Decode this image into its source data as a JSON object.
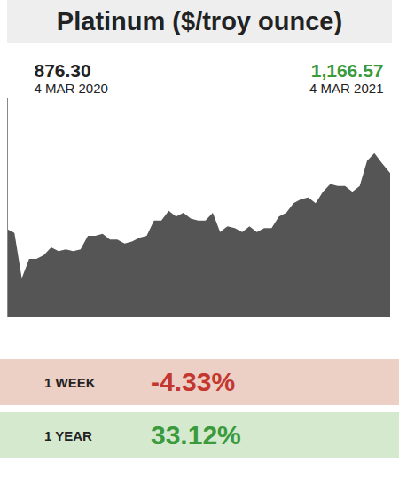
{
  "chart_data": {
    "type": "area",
    "title": "Platinum ($/troy ounce)",
    "color": "#555555",
    "tick_labels": false,
    "x": [
      "2020-03-04",
      "2020-03-11",
      "2020-03-18",
      "2020-03-25",
      "2020-04-01",
      "2020-04-08",
      "2020-04-15",
      "2020-04-22",
      "2020-04-29",
      "2020-05-06",
      "2020-05-13",
      "2020-05-20",
      "2020-05-27",
      "2020-06-03",
      "2020-06-10",
      "2020-06-17",
      "2020-06-24",
      "2020-07-01",
      "2020-07-08",
      "2020-07-15",
      "2020-07-22",
      "2020-07-29",
      "2020-08-05",
      "2020-08-12",
      "2020-08-19",
      "2020-08-26",
      "2020-09-02",
      "2020-09-09",
      "2020-09-16",
      "2020-09-23",
      "2020-09-30",
      "2020-10-07",
      "2020-10-14",
      "2020-10-21",
      "2020-10-28",
      "2020-11-04",
      "2020-11-11",
      "2020-11-18",
      "2020-11-25",
      "2020-12-02",
      "2020-12-09",
      "2020-12-16",
      "2020-12-23",
      "2020-12-30",
      "2021-01-06",
      "2021-01-13",
      "2021-01-20",
      "2021-01-27",
      "2021-02-03",
      "2021-02-10",
      "2021-02-17",
      "2021-02-24",
      "2021-03-04"
    ],
    "values": [
      876.3,
      855,
      620,
      720,
      720,
      740,
      780,
      760,
      770,
      760,
      770,
      840,
      840,
      850,
      820,
      820,
      800,
      810,
      830,
      840,
      920,
      920,
      970,
      940,
      960,
      930,
      920,
      920,
      960,
      860,
      890,
      880,
      860,
      890,
      860,
      880,
      880,
      940,
      960,
      1010,
      1030,
      1040,
      1010,
      1070,
      1110,
      1100,
      1100,
      1070,
      1100,
      1230,
      1270,
      1220,
      1166.57
    ],
    "xlim": [
      "2020-03-04",
      "2021-03-04"
    ],
    "xticks": [],
    "ylim": [
      420,
      1560
    ],
    "yticks": [],
    "annotations": [
      {
        "x": "2020-03-04",
        "label": "876.30",
        "date_label": "4 MAR 2020",
        "color": "#222222"
      },
      {
        "x": "2021-03-04",
        "label": "1,166.57",
        "date_label": "4 MAR 2021",
        "color": "#3a9a3c"
      }
    ],
    "changes": {
      "categories": [
        "1 WEEK",
        "1 YEAR"
      ],
      "values": [
        -4.33,
        33.12
      ],
      "value_labels": [
        "-4.33%",
        "33.12%"
      ],
      "colors": [
        "#c4372f",
        "#3a9a3c"
      ]
    }
  }
}
